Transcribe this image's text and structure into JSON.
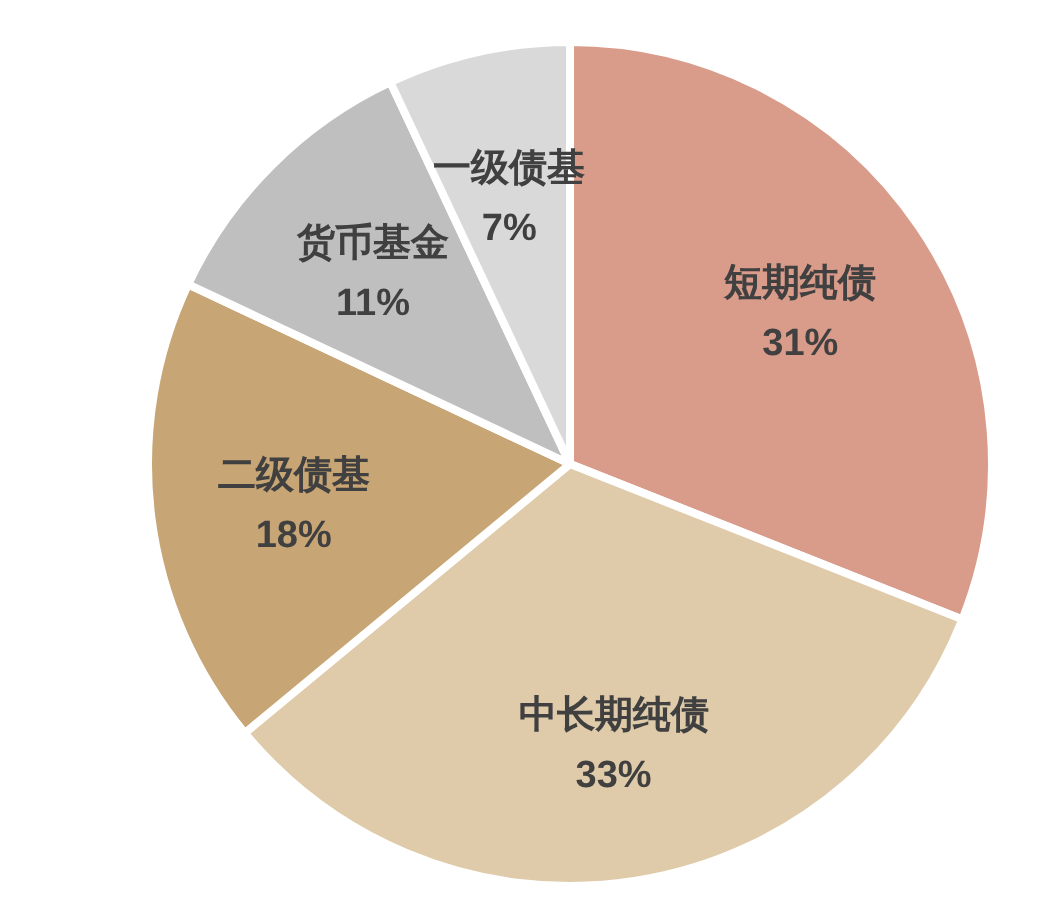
{
  "chart_data": {
    "type": "pie",
    "categories": [
      "短期纯债",
      "中长期纯债",
      "二级债基",
      "货币基金",
      "一级债基"
    ],
    "values": [
      31,
      33,
      18,
      11,
      7
    ],
    "colors": [
      "#d99b8a",
      "#dfcba9",
      "#c8a574",
      "#bfbfbf",
      "#d9d9d9"
    ],
    "value_labels": [
      "31%",
      "33%",
      "18%",
      "11%",
      "7%"
    ]
  }
}
